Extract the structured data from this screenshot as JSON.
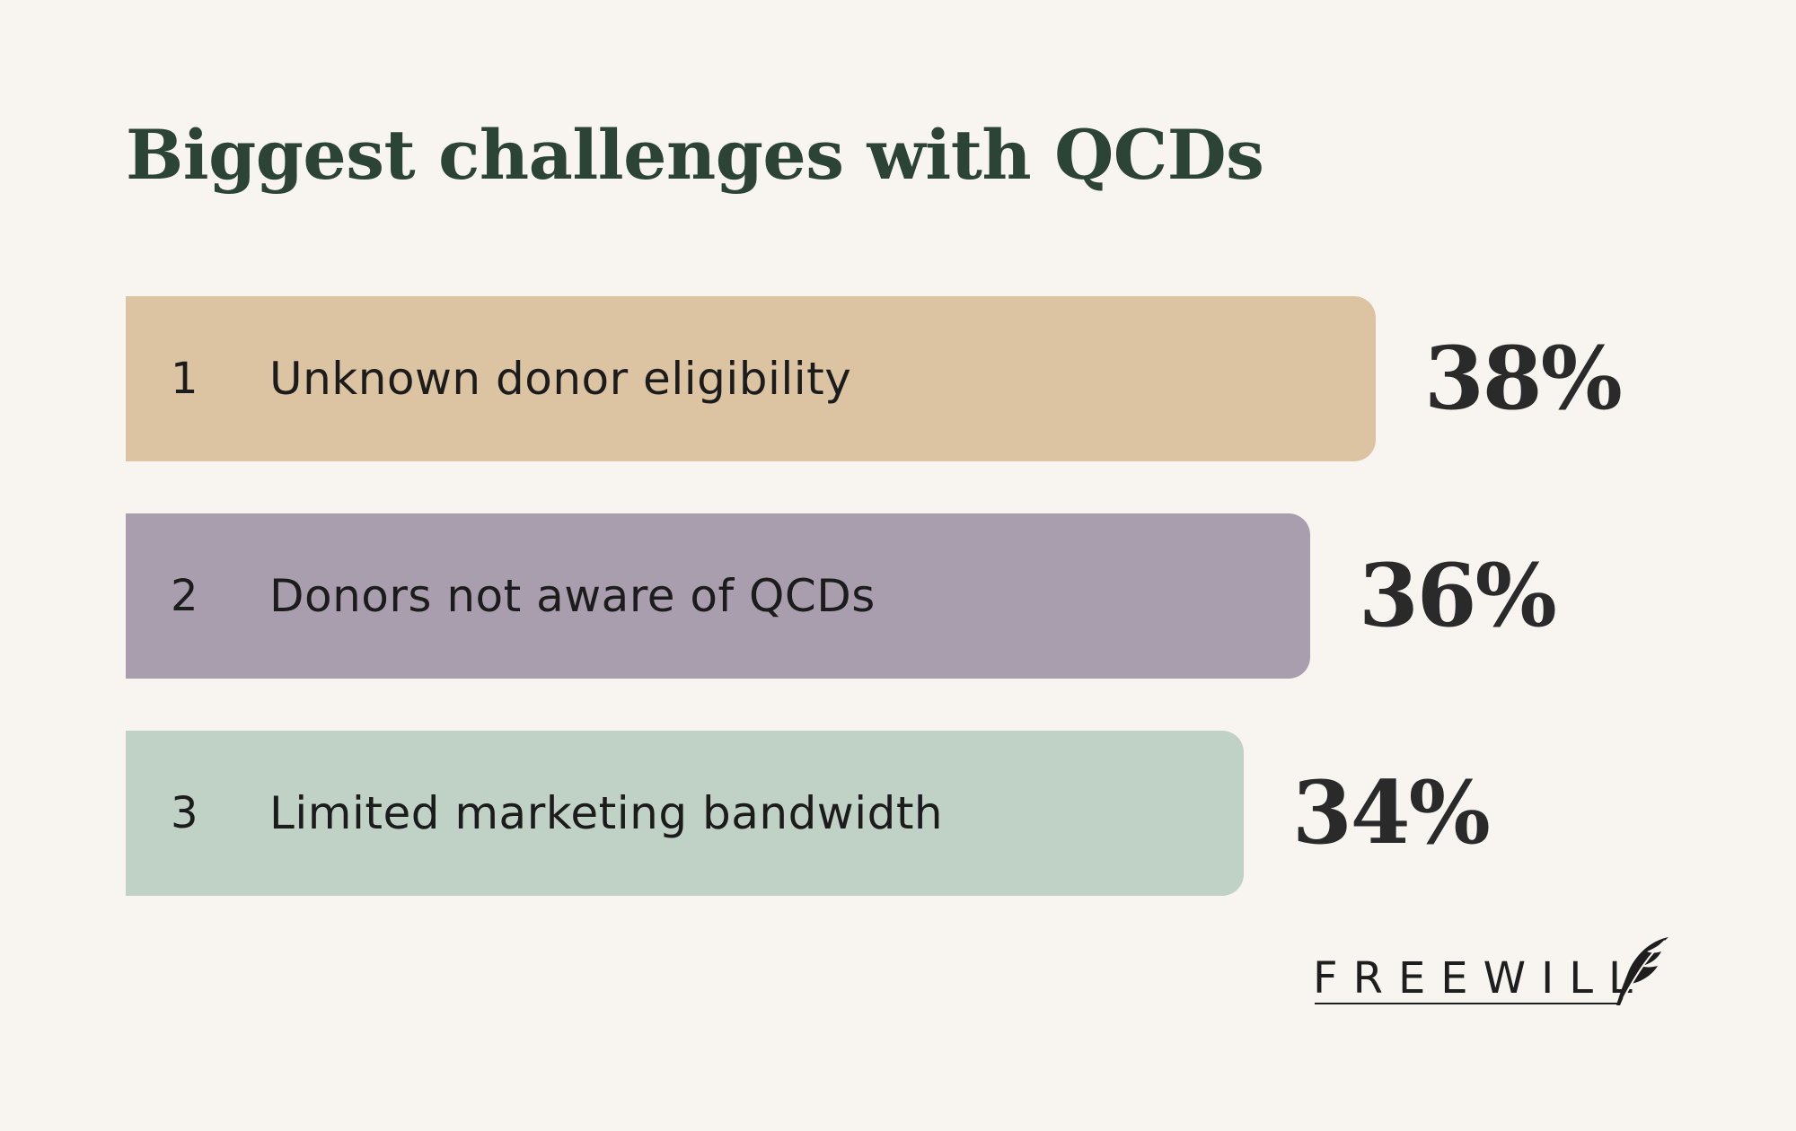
{
  "chart_data": {
    "type": "bar",
    "orientation": "horizontal",
    "title": "Biggest challenges with QCDs",
    "xlabel": "",
    "ylabel": "",
    "categories": [
      "Unknown donor eligibility",
      "Donors not aware of QCDs",
      "Limited marketing bandwidth"
    ],
    "ranks": [
      "1",
      "2",
      "3"
    ],
    "values": [
      38,
      36,
      34
    ],
    "value_labels": [
      "38%",
      "36%",
      "34%"
    ],
    "colors": [
      "#dcc4a3",
      "#a99eae",
      "#c0d1c5"
    ],
    "grid": false,
    "legend": "none"
  },
  "logo": {
    "text": "FREEWILL",
    "icon": "quill-icon"
  }
}
